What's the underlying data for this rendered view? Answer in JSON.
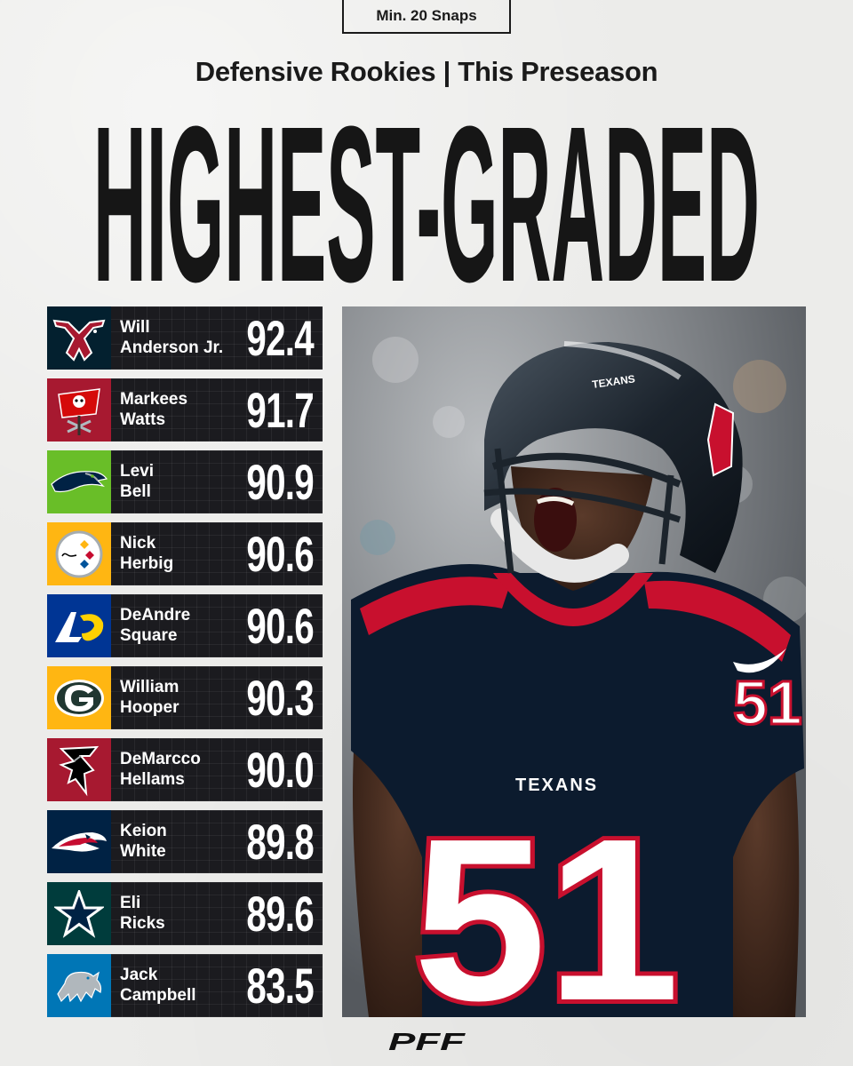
{
  "badge": "Min. 20 Snaps",
  "subtitle": "Defensive Rookies | This Preseason",
  "headline": "HIGHEST-GRADED",
  "players": [
    {
      "first": "Will",
      "last": "Anderson Jr.",
      "grade": "92.4",
      "team_icon": "texans-logo-icon",
      "team_color": "#03202f"
    },
    {
      "first": "Markees",
      "last": "Watts",
      "grade": "91.7",
      "team_icon": "buccaneers-logo-icon",
      "team_color": "#a71930"
    },
    {
      "first": "Levi",
      "last": "Bell",
      "grade": "90.9",
      "team_icon": "seahawks-logo-icon",
      "team_color": "#69be28"
    },
    {
      "first": "Nick",
      "last": "Herbig",
      "grade": "90.6",
      "team_icon": "steelers-logo-icon",
      "team_color": "#ffb612"
    },
    {
      "first": "DeAndre",
      "last": "Square",
      "grade": "90.6",
      "team_icon": "rams-logo-icon",
      "team_color": "#003594"
    },
    {
      "first": "William",
      "last": "Hooper",
      "grade": "90.3",
      "team_icon": "packers-logo-icon",
      "team_color": "#ffb612"
    },
    {
      "first": "DeMarcco",
      "last": "Hellams",
      "grade": "90.0",
      "team_icon": "falcons-logo-icon",
      "team_color": "#a71930"
    },
    {
      "first": "Keion",
      "last": "White",
      "grade": "89.8",
      "team_icon": "patriots-logo-icon",
      "team_color": "#002244"
    },
    {
      "first": "Eli",
      "last": "Ricks",
      "grade": "89.6",
      "team_icon": "cowboys-logo-icon",
      "team_color": "#003c3c"
    },
    {
      "first": "Jack",
      "last": "Campbell",
      "grade": "83.5",
      "team_icon": "lions-logo-icon",
      "team_color": "#0076b6"
    }
  ],
  "photo": {
    "jersey_number": "51",
    "jersey_text": "TEXANS",
    "helmet_text": "TEXANS"
  },
  "footer_logo": "PFF"
}
